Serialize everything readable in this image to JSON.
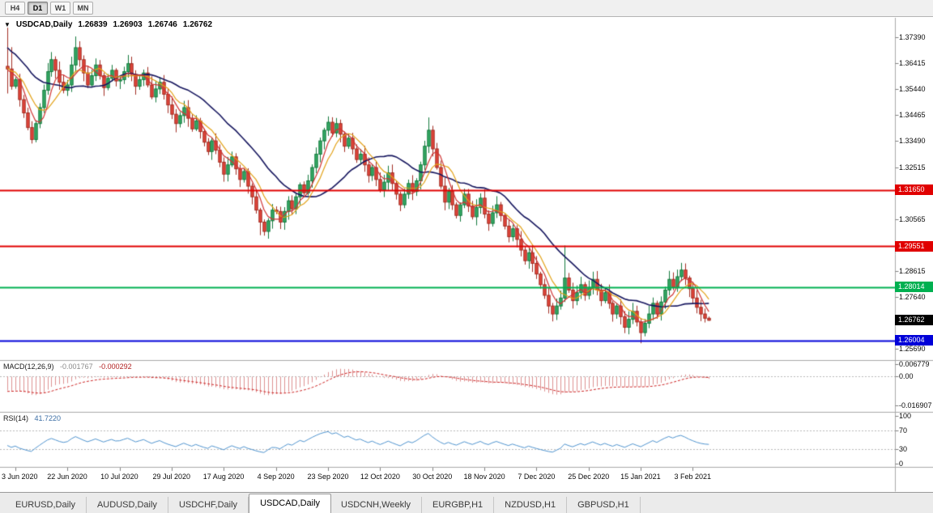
{
  "toolbar": {
    "buttons": [
      {
        "label": "H4",
        "active": false
      },
      {
        "label": "D1",
        "active": true
      },
      {
        "label": "W1",
        "active": false
      },
      {
        "label": "MN",
        "active": false
      }
    ]
  },
  "chart_header": {
    "symbol": "USDCAD,Daily",
    "open": "1.26839",
    "high": "1.26903",
    "low": "1.26746",
    "close": "1.26762",
    "menu_icon": "▼"
  },
  "chart_data": {
    "type": "candlestick",
    "title": "USDCAD,Daily",
    "symbol": "USDCAD",
    "timeframe": "Daily",
    "ylim": [
      1.2533,
      1.38
    ],
    "grid": false,
    "x_labels": [
      "3 Jun 2020",
      "22 Jun 2020",
      "10 Jul 2020",
      "29 Jul 2020",
      "17 Aug 2020",
      "4 Sep 2020",
      "23 Sep 2020",
      "12 Oct 2020",
      "30 Oct 2020",
      "18 Nov 2020",
      "7 Dec 2020",
      "25 Dec 2020",
      "15 Jan 2021",
      "3 Feb 2021"
    ],
    "x_label_indices": [
      2,
      15,
      28,
      41,
      54,
      67,
      80,
      93,
      106,
      119,
      132,
      145,
      158,
      171
    ],
    "closes": [
      1.362,
      1.3555,
      1.358,
      1.3505,
      1.3455,
      1.34,
      1.3355,
      1.3415,
      1.3475,
      1.354,
      1.361,
      1.3655,
      1.3615,
      1.357,
      1.354,
      1.356,
      1.3635,
      1.37,
      1.3655,
      1.3605,
      1.356,
      1.3595,
      1.3635,
      1.3595,
      1.355,
      1.3585,
      1.3615,
      1.3575,
      1.358,
      1.361,
      1.364,
      1.36,
      1.3555,
      1.358,
      1.3605,
      1.356,
      1.3515,
      1.3545,
      1.357,
      1.3525,
      1.3485,
      1.345,
      1.3415,
      1.3445,
      1.3475,
      1.3435,
      1.3395,
      1.3425,
      1.3385,
      1.3345,
      1.331,
      1.335,
      1.3315,
      1.327,
      1.3225,
      1.326,
      1.329,
      1.3245,
      1.3205,
      1.3235,
      1.318,
      1.314,
      1.309,
      1.3045,
      1.301,
      1.305,
      1.309,
      1.3085,
      1.3045,
      1.3085,
      1.3125,
      1.3095,
      1.314,
      1.3185,
      1.3155,
      1.32,
      1.325,
      1.33,
      1.335,
      1.339,
      1.342,
      1.338,
      1.3415,
      1.3375,
      1.333,
      1.336,
      1.332,
      1.328,
      1.33,
      1.326,
      1.322,
      1.325,
      1.3205,
      1.3165,
      1.3195,
      1.323,
      1.319,
      1.315,
      1.311,
      1.315,
      1.319,
      1.316,
      1.32,
      1.326,
      1.333,
      1.339,
      1.332,
      1.325,
      1.318,
      1.312,
      1.316,
      1.311,
      1.307,
      1.311,
      1.315,
      1.3105,
      1.3065,
      1.31,
      1.3135,
      1.3075,
      1.304,
      1.308,
      1.311,
      1.307,
      1.303,
      1.299,
      1.302,
      1.298,
      1.294,
      1.29,
      1.293,
      1.289,
      1.285,
      1.281,
      1.277,
      1.273,
      1.27,
      1.273,
      1.276,
      1.2835,
      1.279,
      1.275,
      1.278,
      1.281,
      1.277,
      1.28,
      1.283,
      1.279,
      1.275,
      1.278,
      1.274,
      1.27,
      1.273,
      1.269,
      1.265,
      1.268,
      1.271,
      1.267,
      1.263,
      1.2665,
      1.27,
      1.274,
      1.27,
      1.2745,
      1.279,
      1.283,
      1.28,
      1.284,
      1.2865,
      1.2835,
      1.2795,
      1.276,
      1.2725,
      1.27,
      1.2684,
      1.26762
    ],
    "wick_overrides": {
      "0": {
        "h": 1.3775,
        "l": 1.3528
      },
      "1": {
        "h": 1.3702
      },
      "17": {
        "h": 1.3742
      },
      "63": {
        "l": 1.2996
      },
      "64": {
        "l": 1.2994
      },
      "80": {
        "h": 1.3442
      },
      "82": {
        "h": 1.3436
      },
      "105": {
        "h": 1.3438
      },
      "139": {
        "h": 1.2957,
        "l": 1.2745
      },
      "158": {
        "l": 1.259
      },
      "165": {
        "h": 1.2862
      },
      "168": {
        "h": 1.2892
      },
      "175": {
        "h": 1.26903,
        "l": 1.26746
      }
    },
    "pre_history_closes": [
      1.418,
      1.412,
      1.416,
      1.41,
      1.405,
      1.409,
      1.403,
      1.398,
      1.402,
      1.396,
      1.4,
      1.395,
      1.399,
      1.394,
      1.389,
      1.393,
      1.388,
      1.392,
      1.387,
      1.382,
      1.386,
      1.381,
      1.385,
      1.38,
      1.375,
      1.379,
      1.374,
      1.369,
      1.373,
      1.368,
      1.372,
      1.367,
      1.362,
      1.366,
      1.361,
      1.365,
      1.36,
      1.364,
      1.359,
      1.363
    ],
    "candle_colors": {
      "up_fill": "#35a964",
      "up_border": "#137a3d",
      "down_fill": "#e2453a",
      "down_border": "#a12c22"
    },
    "moving_averages": [
      {
        "period": 21,
        "color": "#16165e",
        "width": 1.6
      },
      {
        "period": 8,
        "color": "#e2a117",
        "width": 1.2
      },
      {
        "period": 5,
        "color": "#cf3333",
        "width": 1.2
      }
    ],
    "price_axis_ticks": [
      {
        "label": "1.37390",
        "value": 1.3739
      },
      {
        "label": "1.36415",
        "value": 1.36415
      },
      {
        "label": "1.35440",
        "value": 1.3544
      },
      {
        "label": "1.34465",
        "value": 1.34465
      },
      {
        "label": "1.33490",
        "value": 1.3349
      },
      {
        "label": "1.32515",
        "value": 1.32515
      },
      {
        "label": "1.30565",
        "value": 1.30565
      },
      {
        "label": "1.28615",
        "value": 1.28615
      },
      {
        "label": "1.27640",
        "value": 1.2764
      },
      {
        "label": "1.25690",
        "value": 1.2569
      }
    ],
    "hlines": [
      {
        "label": "1.31650",
        "price": 1.3165,
        "color": "#e00000",
        "width": 2
      },
      {
        "label": "1.29551",
        "price": 1.29551,
        "color": "#e00000",
        "width": 2
      },
      {
        "label": "1.28014",
        "price": 1.28014,
        "color": "#00b050",
        "width": 2
      },
      {
        "label": "1.26004",
        "price": 1.26004,
        "color": "#0000d8",
        "width": 2
      }
    ],
    "current_price": {
      "label": "1.26762",
      "value": 1.26762,
      "color": "#000000"
    },
    "indicators": {
      "macd": {
        "label": "MACD(12,26,9)",
        "fast": 12,
        "slow": 26,
        "signal": 9,
        "value_main": "-0.001767",
        "value_signal": "-0.000292",
        "scale_max": "0.006779",
        "scale_zero": "0.00",
        "scale_min": "-0.016907",
        "hist_color": "#dd9090",
        "signal_color": "#cc2222"
      },
      "rsi": {
        "label": "RSI(14)",
        "period": 14,
        "value": "41.7220",
        "levels": [
          100,
          70,
          30,
          0
        ],
        "color": "#4f93ce"
      }
    }
  },
  "tabbar": {
    "active_index": 3,
    "tabs": [
      {
        "label": "EURUSD,Daily"
      },
      {
        "label": "AUDUSD,Daily"
      },
      {
        "label": "USDCHF,Daily"
      },
      {
        "label": "USDCAD,Daily"
      },
      {
        "label": "USDCNH,Weekly"
      },
      {
        "label": "EURGBP,H1"
      },
      {
        "label": "NZDUSD,H1"
      },
      {
        "label": "GBPUSD,H1"
      }
    ]
  }
}
